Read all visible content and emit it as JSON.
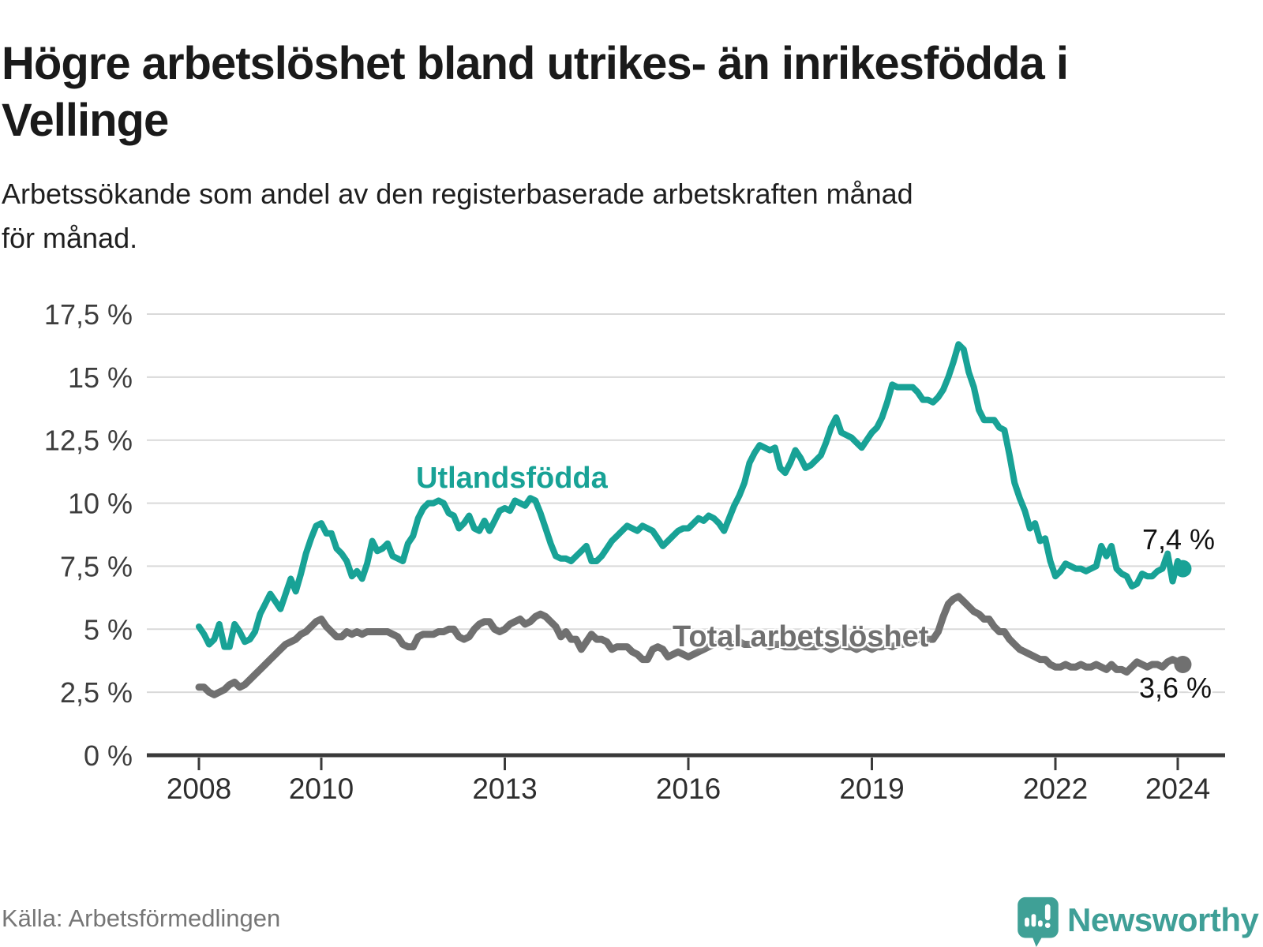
{
  "source": "Källa: Arbetsförmedlingen",
  "logo": {
    "text": "Newsworthy",
    "icon": "newsworthy-bubble-chart-icon",
    "color": "#3f9f97"
  },
  "chart_data": {
    "type": "line",
    "title": "Högre arbetslöshet bland utrikes- än inrikesfödda i Vellinge",
    "subtitle": "Arbetssökande som andel av den registerbaserade arbetskraften månad för månad.",
    "unit": "%",
    "frequency": "monthly",
    "x_start": {
      "year": 2008,
      "month": 1
    },
    "x_end": {
      "year": 2024,
      "month": 2
    },
    "ylim": [
      0,
      17.5
    ],
    "grid": "horizontal",
    "legend_position": "inline-labels",
    "ytick_values": [
      0,
      2.5,
      5,
      7.5,
      10,
      12.5,
      15,
      17.5
    ],
    "ytick_labels": [
      "0 %",
      "2,5 %",
      "5 %",
      "7,5 %",
      "10 %",
      "12,5 %",
      "15 %",
      "17,5 %"
    ],
    "xticks": [
      2008,
      2010,
      2013,
      2016,
      2019,
      2022,
      2024
    ],
    "series": [
      {
        "name": "Utlandsfödda",
        "color": "#18a296",
        "end_label": "7,4 %",
        "end_value": 7.4,
        "values": [
          5.1,
          4.8,
          4.4,
          4.6,
          5.2,
          4.3,
          4.3,
          5.2,
          4.9,
          4.5,
          4.6,
          4.9,
          5.6,
          6.0,
          6.4,
          6.1,
          5.8,
          6.4,
          7.0,
          6.5,
          7.2,
          8.0,
          8.6,
          9.1,
          9.2,
          8.8,
          8.8,
          8.2,
          8.0,
          7.7,
          7.1,
          7.3,
          7.0,
          7.6,
          8.5,
          8.1,
          8.2,
          8.4,
          7.9,
          7.8,
          7.7,
          8.4,
          8.7,
          9.4,
          9.8,
          10.0,
          10.0,
          10.1,
          10.0,
          9.6,
          9.5,
          9.0,
          9.2,
          9.5,
          9.0,
          8.9,
          9.3,
          8.9,
          9.3,
          9.7,
          9.8,
          9.7,
          10.1,
          10.0,
          9.9,
          10.2,
          10.1,
          9.6,
          9.0,
          8.4,
          7.9,
          7.8,
          7.8,
          7.7,
          7.9,
          8.1,
          8.3,
          7.7,
          7.7,
          7.9,
          8.2,
          8.5,
          8.7,
          8.9,
          9.1,
          9.0,
          8.9,
          9.1,
          9.0,
          8.9,
          8.6,
          8.3,
          8.5,
          8.7,
          8.9,
          9.0,
          9.0,
          9.2,
          9.4,
          9.3,
          9.5,
          9.4,
          9.2,
          8.9,
          9.4,
          9.9,
          10.3,
          10.8,
          11.6,
          12.0,
          12.3,
          12.2,
          12.1,
          12.2,
          11.4,
          11.2,
          11.6,
          12.1,
          11.8,
          11.4,
          11.5,
          11.7,
          11.9,
          12.4,
          13.0,
          13.4,
          12.8,
          12.7,
          12.6,
          12.4,
          12.2,
          12.5,
          12.8,
          13.0,
          13.4,
          14.0,
          14.7,
          14.6,
          14.6,
          14.6,
          14.6,
          14.4,
          14.1,
          14.1,
          14.0,
          14.2,
          14.5,
          15.0,
          15.6,
          16.3,
          16.1,
          15.2,
          14.6,
          13.7,
          13.3,
          13.3,
          13.3,
          13.0,
          12.9,
          11.9,
          10.8,
          10.2,
          9.7,
          9.0,
          9.2,
          8.5,
          8.6,
          7.7,
          7.1,
          7.3,
          7.6,
          7.5,
          7.4,
          7.4,
          7.3,
          7.4,
          7.5,
          8.3,
          7.9,
          8.3,
          7.4,
          7.2,
          7.1,
          6.7,
          6.8,
          7.2,
          7.1,
          7.1,
          7.3,
          7.4,
          8.0,
          6.9,
          7.7,
          7.4
        ]
      },
      {
        "name": "Total arbetslöshet",
        "color": "#707070",
        "end_label": "3,6 %",
        "end_value": 3.6,
        "values": [
          2.7,
          2.7,
          2.5,
          2.4,
          2.5,
          2.6,
          2.8,
          2.9,
          2.7,
          2.8,
          3.0,
          3.2,
          3.4,
          3.6,
          3.8,
          4.0,
          4.2,
          4.4,
          4.5,
          4.6,
          4.8,
          4.9,
          5.1,
          5.3,
          5.4,
          5.1,
          4.9,
          4.7,
          4.7,
          4.9,
          4.8,
          4.9,
          4.8,
          4.9,
          4.9,
          4.9,
          4.9,
          4.9,
          4.8,
          4.7,
          4.4,
          4.3,
          4.3,
          4.7,
          4.8,
          4.8,
          4.8,
          4.9,
          4.9,
          5.0,
          5.0,
          4.7,
          4.6,
          4.7,
          5.0,
          5.2,
          5.3,
          5.3,
          5.0,
          4.9,
          5.0,
          5.2,
          5.3,
          5.4,
          5.2,
          5.3,
          5.5,
          5.6,
          5.5,
          5.3,
          5.1,
          4.7,
          4.9,
          4.6,
          4.6,
          4.2,
          4.5,
          4.8,
          4.6,
          4.6,
          4.5,
          4.2,
          4.3,
          4.3,
          4.3,
          4.1,
          4.0,
          3.8,
          3.8,
          4.2,
          4.3,
          4.2,
          3.9,
          4.0,
          4.1,
          4.0,
          3.9,
          4.0,
          4.1,
          4.2,
          4.3,
          4.4,
          4.4,
          4.4,
          4.3,
          4.4,
          4.5,
          4.4,
          4.4,
          4.4,
          4.5,
          4.4,
          4.3,
          4.4,
          4.4,
          4.3,
          4.3,
          4.3,
          4.4,
          4.3,
          4.3,
          4.3,
          4.4,
          4.3,
          4.2,
          4.3,
          4.4,
          4.3,
          4.3,
          4.2,
          4.3,
          4.3,
          4.2,
          4.3,
          4.3,
          4.4,
          4.3,
          4.4,
          4.4,
          4.5,
          4.5,
          4.6,
          4.6,
          4.6,
          4.6,
          4.9,
          5.5,
          6.0,
          6.2,
          6.3,
          6.1,
          5.9,
          5.7,
          5.6,
          5.4,
          5.4,
          5.1,
          4.9,
          4.9,
          4.6,
          4.4,
          4.2,
          4.1,
          4.0,
          3.9,
          3.8,
          3.8,
          3.6,
          3.5,
          3.5,
          3.6,
          3.5,
          3.5,
          3.6,
          3.5,
          3.5,
          3.6,
          3.5,
          3.4,
          3.6,
          3.4,
          3.4,
          3.3,
          3.5,
          3.7,
          3.6,
          3.5,
          3.6,
          3.6,
          3.5,
          3.7,
          3.8,
          3.7,
          3.6
        ]
      }
    ]
  }
}
